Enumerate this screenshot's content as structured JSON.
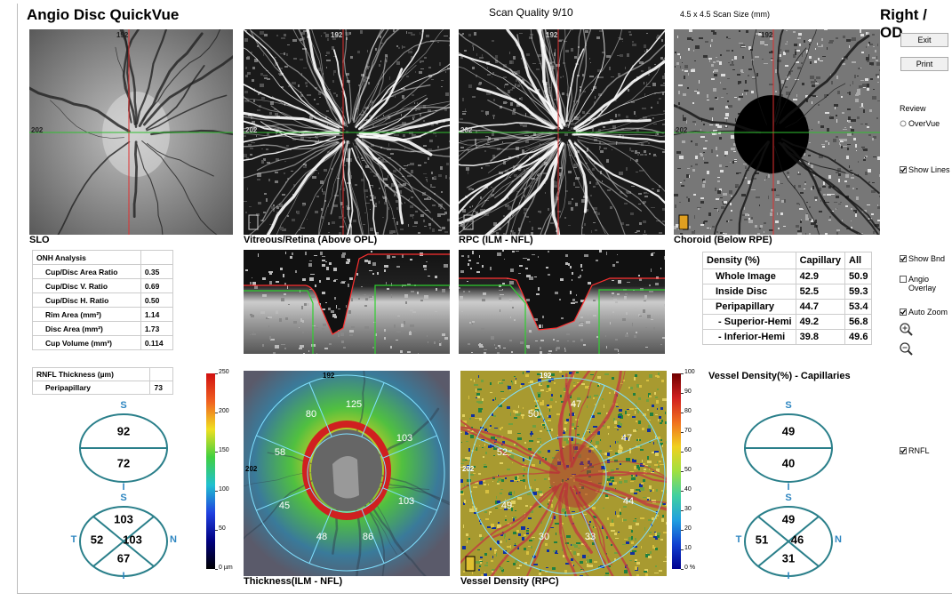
{
  "header": {
    "title": "Angio Disc QuickVue",
    "scan_quality": "Scan Quality 9/10",
    "scan_size": "4.5 x 4.5 Scan Size (mm)",
    "eye": "Right / OD"
  },
  "images": [
    {
      "label": "SLO",
      "top_marker": "192",
      "left_marker": "202"
    },
    {
      "label": "Vitreous/Retina (Above OPL)",
      "top_marker": "192",
      "left_marker": "202"
    },
    {
      "label": "RPC (ILM - NFL)",
      "top_marker": "192",
      "left_marker": "202"
    },
    {
      "label": "Choroid (Below RPE)",
      "top_marker": "192",
      "left_marker": "202"
    }
  ],
  "onh_table": {
    "title": "ONH Analysis",
    "rows": [
      [
        "Cup/Disc Area Ratio",
        "0.35"
      ],
      [
        "Cup/Disc V. Ratio",
        "0.69"
      ],
      [
        "Cup/Disc H. Ratio",
        "0.50"
      ],
      [
        "Rim Area (mm²)",
        "1.14"
      ],
      [
        "Disc Area (mm²)",
        "1.73"
      ],
      [
        "Cup Volume (mm³)",
        "0.114"
      ]
    ]
  },
  "rnfl_table": {
    "title": "RNFL Thickness (µm)",
    "rows": [
      [
        "Peripapillary",
        "73"
      ]
    ]
  },
  "density_table": {
    "headers": [
      "Density (%)",
      "Capillary",
      "All"
    ],
    "rows": [
      [
        "Whole Image",
        "42.9",
        "50.9"
      ],
      [
        "Inside Disc",
        "52.5",
        "59.3"
      ],
      [
        "Peripapillary",
        "44.7",
        "53.4"
      ],
      [
        " - Superior-Hemi",
        "49.2",
        "56.8"
      ],
      [
        " - Inferior-Hemi",
        "39.8",
        "49.6"
      ]
    ]
  },
  "thickness_map": {
    "label": "Thickness(ILM - NFL)",
    "top_marker": "192",
    "left_marker": "202",
    "sectors": [
      "125",
      "103",
      "103",
      "86",
      "48",
      "45",
      "58",
      "80"
    ],
    "scale": [
      "250",
      "200",
      "150",
      "100",
      "50",
      "0 µm"
    ]
  },
  "vessel_map": {
    "title": "Vessel Density(%) - Capillaries",
    "label": "Vessel Density (RPC)",
    "top_marker": "192",
    "left_marker": "202",
    "sectors": [
      "47",
      "47",
      "44",
      "33",
      "30",
      "49",
      "52",
      "50"
    ],
    "scale": [
      "100",
      "90",
      "80",
      "70",
      "60",
      "50",
      "40",
      "30",
      "20",
      "10",
      "0 %"
    ]
  },
  "rnfl_diagram": {
    "hemi": {
      "top_label": "S",
      "top": "92",
      "bottom": "72",
      "bottom_label": "I"
    },
    "quadrant": {
      "top_label": "S",
      "superior": "103",
      "temporal_label": "T",
      "temporal": "52",
      "nasal": "103",
      "nasal_label": "N",
      "inferior": "67",
      "bottom_label": "I"
    }
  },
  "vd_diagram": {
    "hemi": {
      "top_label": "S",
      "top": "49",
      "bottom": "40",
      "bottom_label": "I"
    },
    "quadrant": {
      "top_label": "S",
      "superior": "49",
      "temporal_label": "T",
      "temporal": "51",
      "nasal": "46",
      "nasal_label": "N",
      "inferior": "31",
      "bottom_label": "I"
    }
  },
  "controls": {
    "exit": "Exit",
    "print": "Print",
    "review": "Review",
    "overvue": "OverVue",
    "show_lines": "Show Lines",
    "show_bnd": "Show Bnd",
    "angio_overlay": "Angio Overlay",
    "auto_zoom": "Auto Zoom",
    "rnfl": "RNFL"
  }
}
